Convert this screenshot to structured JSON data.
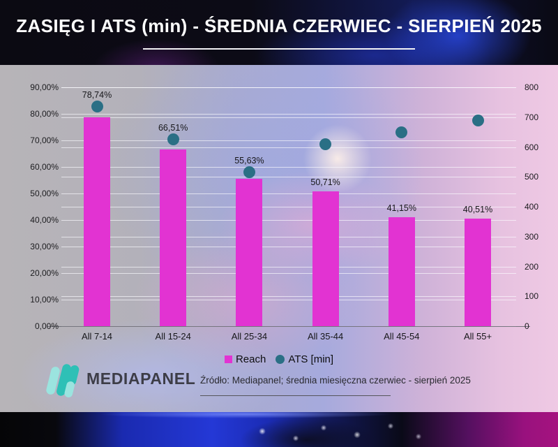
{
  "header": {
    "title": "ZASIĘG I ATS (min) - ŚREDNIA CZERWIEC - SIERPIEŃ 2025"
  },
  "chart_data": {
    "type": "bar",
    "title": "ZASIĘG I ATS (min) - ŚREDNIA CZERWIEC - SIERPIEŃ 2025",
    "categories": [
      "All 7-14",
      "All 15-24",
      "All 25-34",
      "All 35-44",
      "All 45-54",
      "All 55+"
    ],
    "series": [
      {
        "name": "Reach",
        "type": "bar",
        "axis": "left",
        "unit": "%",
        "values": [
          78.74,
          66.51,
          55.63,
          50.71,
          41.15,
          40.51
        ],
        "labels": [
          "78,74%",
          "66,51%",
          "55,63%",
          "50,71%",
          "41,15%",
          "40,51%"
        ],
        "color": "#E233D2"
      },
      {
        "name": "ATS [min]",
        "type": "scatter",
        "axis": "right",
        "unit": "min",
        "estimated": true,
        "values": [
          735,
          625,
          515,
          610,
          650,
          690
        ],
        "color": "#2A6F85"
      }
    ],
    "left_axis": {
      "min": 0,
      "max": 90,
      "step": 10,
      "tick_format": "0,00%"
    },
    "right_axis": {
      "min": 0,
      "max": 800,
      "step": 100
    },
    "legend_labels": [
      "Reach",
      "ATS [min]"
    ],
    "legend_position": "bottom",
    "grid": true
  },
  "footer": {
    "brand": "MEDIAPANEL",
    "source": "Źródło: Mediapanel; średnia miesięczna czerwiec - sierpień 2025"
  }
}
